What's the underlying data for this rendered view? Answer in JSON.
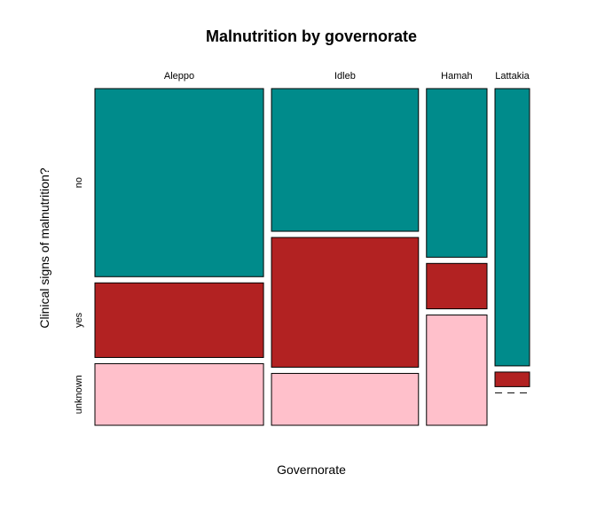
{
  "chart_data": {
    "type": "mosaic",
    "title": "Malnutrition by governorate",
    "xlabel": "Governorate",
    "ylabel": "Clinical signs of malnutrition?",
    "categories": [
      "Aleppo",
      "Idleb",
      "Hamah",
      "Lattakia"
    ],
    "category_share": [
      0.39,
      0.34,
      0.14,
      0.08
    ],
    "levels": [
      "no",
      "yes",
      "unknown"
    ],
    "series": [
      {
        "name": "no",
        "color": "#008B8B",
        "values": [
          0.58,
          0.44,
          0.52,
          0.855
        ]
      },
      {
        "name": "yes",
        "color": "#B22222",
        "values": [
          0.23,
          0.4,
          0.14,
          0.045
        ]
      },
      {
        "name": "unknown",
        "color": "#FFC0CB",
        "values": [
          0.19,
          0.16,
          0.34,
          0.0
        ]
      }
    ]
  }
}
